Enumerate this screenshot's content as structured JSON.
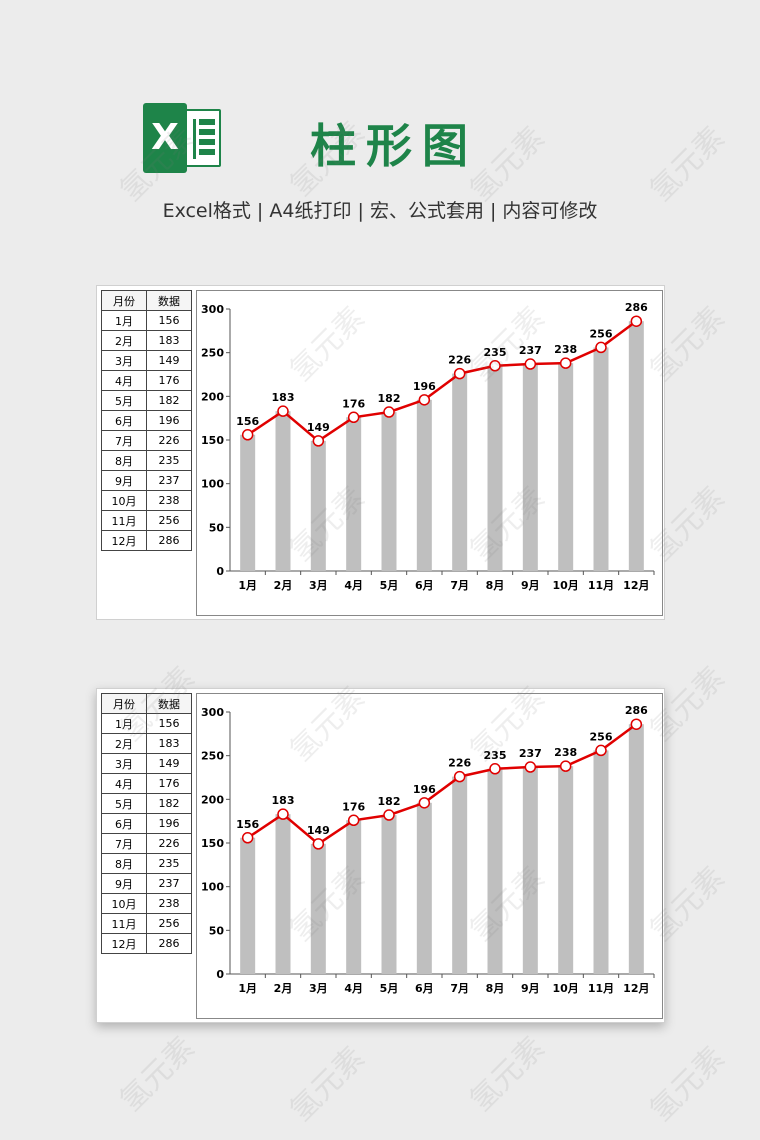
{
  "header": {
    "logo_letter": "X",
    "title": "柱形图",
    "subtitle": "Excel格式 |  A4纸打印 | 宏、公式套用 | 内容可修改"
  },
  "table": {
    "headers": [
      "月份",
      "数据"
    ],
    "rows": [
      [
        "1月",
        "156"
      ],
      [
        "2月",
        "183"
      ],
      [
        "3月",
        "149"
      ],
      [
        "4月",
        "176"
      ],
      [
        "5月",
        "182"
      ],
      [
        "6月",
        "196"
      ],
      [
        "7月",
        "226"
      ],
      [
        "8月",
        "235"
      ],
      [
        "9月",
        "237"
      ],
      [
        "10月",
        "238"
      ],
      [
        "11月",
        "256"
      ],
      [
        "12月",
        "286"
      ]
    ]
  },
  "watermark": "氢元素",
  "colors": {
    "accent": "#1e8449",
    "bar": "#bfbfbf",
    "line": "#e00000"
  },
  "chart_data": {
    "type": "bar",
    "categories": [
      "1月",
      "2月",
      "3月",
      "4月",
      "5月",
      "6月",
      "7月",
      "8月",
      "9月",
      "10月",
      "11月",
      "12月"
    ],
    "values": [
      156,
      183,
      149,
      176,
      182,
      196,
      226,
      235,
      237,
      238,
      256,
      286
    ],
    "line_overlay": true,
    "data_labels": true,
    "yticks": [
      "0",
      "50",
      "100",
      "150",
      "200",
      "250",
      "300"
    ],
    "ylim": [
      0,
      300
    ],
    "xlabel": "",
    "ylabel": "",
    "title": "",
    "grid": false,
    "legend": "none"
  }
}
